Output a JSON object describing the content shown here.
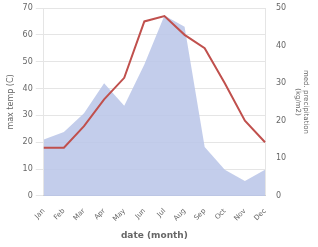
{
  "chart_data": {
    "type": "line",
    "categories": [
      "Jan",
      "Feb",
      "Mar",
      "Apr",
      "May",
      "Jun",
      "Jul",
      "Aug",
      "Sep",
      "Oct",
      "Nov",
      "Dec"
    ],
    "series": [
      {
        "type": "area",
        "axis": "y2",
        "color": "#b8c4e8",
        "values": [
          15,
          17,
          22,
          30,
          24,
          35,
          48,
          45,
          13,
          7,
          4,
          7
        ]
      },
      {
        "type": "line",
        "color": "#c0504d",
        "values": [
          18,
          18,
          26,
          36,
          44,
          65,
          67,
          60,
          55,
          42,
          28,
          20
        ]
      }
    ],
    "xlabel": "date (month)",
    "ylabel": "max temp (C)",
    "y2label": "med. precipitation\n(kg/m2)",
    "ylim": [
      0,
      70
    ],
    "yticks": [
      0,
      10,
      20,
      30,
      40,
      50,
      60,
      70
    ],
    "y2lim": [
      0,
      50
    ],
    "y2ticks": [
      0,
      10,
      20,
      30,
      40,
      50
    ],
    "grid": true
  }
}
